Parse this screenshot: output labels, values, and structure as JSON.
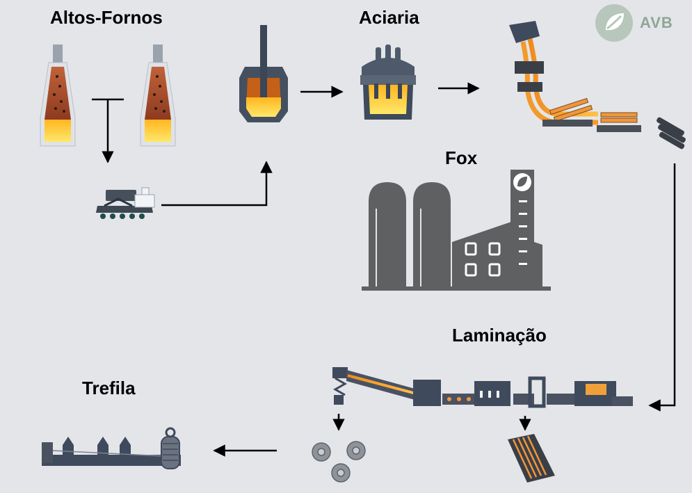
{
  "labels": {
    "altos_fornos": "Altos-Fornos",
    "aciaria": "Aciaria",
    "fox": "Fox",
    "laminacao": "Laminação",
    "trefila": "Trefila"
  },
  "logo": {
    "text": "AVB"
  },
  "colors": {
    "background": "#e3e5e9",
    "molten": "#ffd23a",
    "furnace": "#a84e2a",
    "steel": "#3f4a5c",
    "factory": "#5f6062",
    "logo": "#8fa596"
  },
  "icons": [
    "blast-furnace-icon",
    "torpedo-car-icon",
    "converter-icon",
    "ladle-furnace-icon",
    "continuous-caster-icon",
    "factory-icon",
    "rolling-mill-icon",
    "wire-coil-icon",
    "rebar-bundle-icon",
    "wire-drawing-icon"
  ]
}
